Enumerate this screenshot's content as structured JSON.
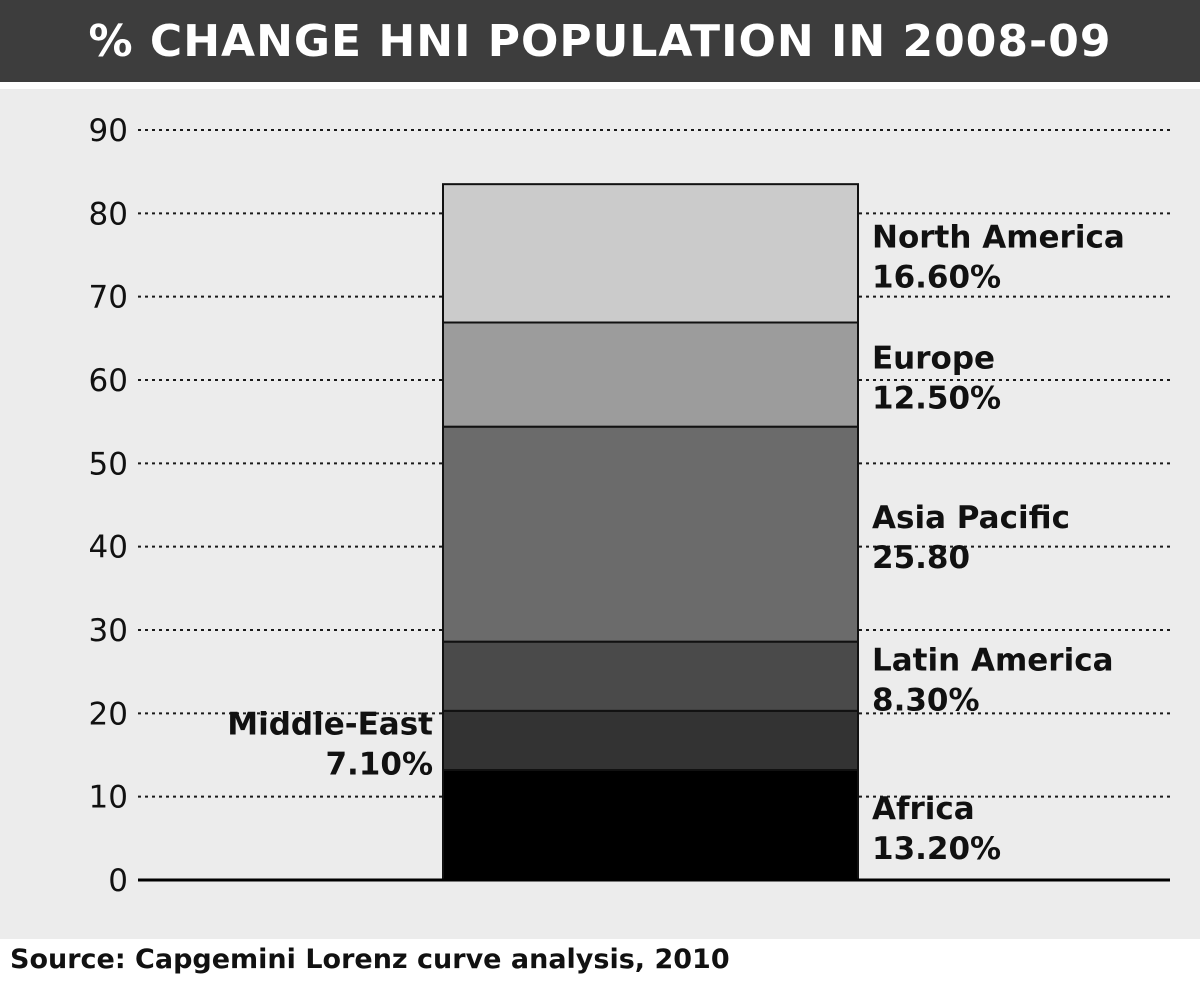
{
  "chart_data": {
    "type": "bar",
    "stacked": true,
    "title": "% CHANGE HNI POPULATION IN 2008-09",
    "source": "Source: Capgemini Lorenz curve analysis, 2010",
    "ylim": [
      0,
      90
    ],
    "yticks": [
      0,
      10,
      20,
      30,
      40,
      50,
      60,
      70,
      80,
      90
    ],
    "grid": "horizontal dotted",
    "series": [
      {
        "name": "Africa",
        "value": 13.2,
        "label": "13.20%",
        "color": "#000000",
        "label_side": "right"
      },
      {
        "name": "Middle-East",
        "value": 7.1,
        "label": "7.10%",
        "color": "#333333",
        "label_side": "left"
      },
      {
        "name": "Latin America",
        "value": 8.3,
        "label": "8.30%",
        "color": "#4a4a4a",
        "label_side": "right"
      },
      {
        "name": "Asia Pacific",
        "value": 25.8,
        "label": "25.80",
        "color": "#6b6b6b",
        "label_side": "right"
      },
      {
        "name": "Europe",
        "value": 12.5,
        "label": "12.50%",
        "color": "#9c9c9c",
        "label_side": "right"
      },
      {
        "name": "North America",
        "value": 16.6,
        "label": "16.60%",
        "color": "#cbcbcb",
        "label_side": "right"
      }
    ]
  }
}
